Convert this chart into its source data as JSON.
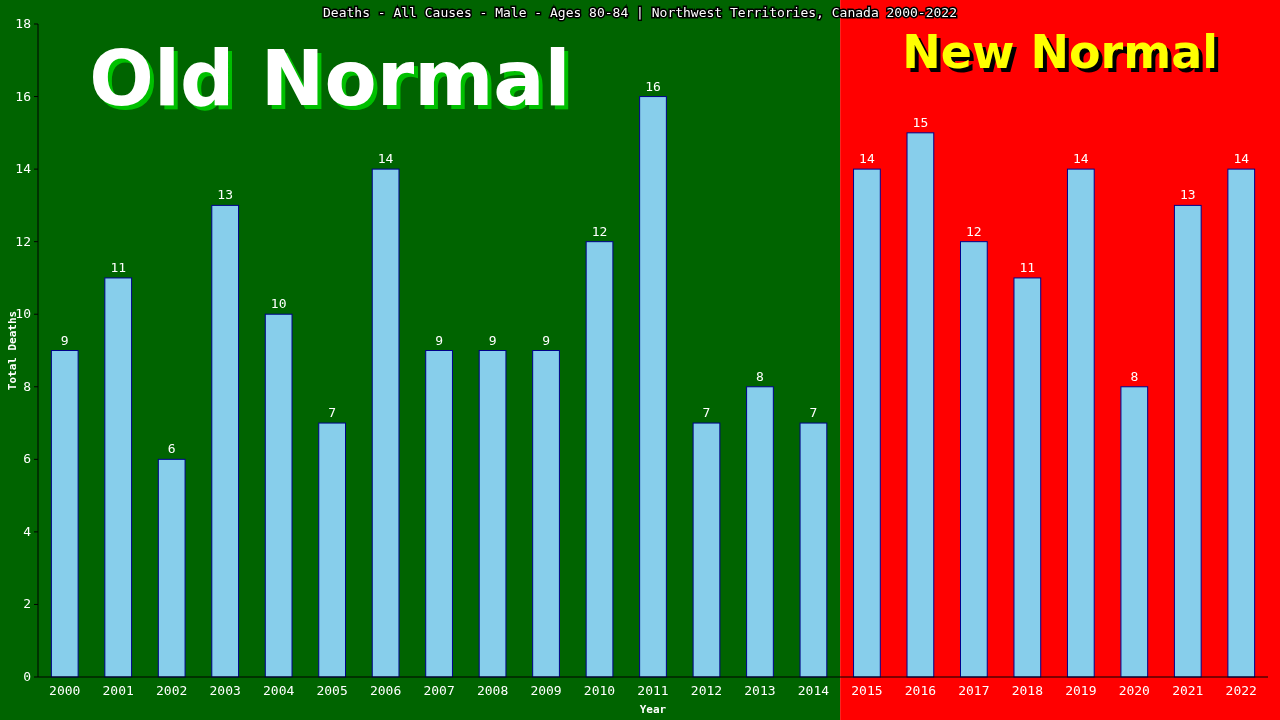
{
  "chart_data": {
    "type": "bar",
    "title": "Deaths - All Causes - Male - Ages 80-84 | Northwest Territories, Canada 2000-2022",
    "xlabel": "Year",
    "ylabel": "Total Deaths",
    "categories": [
      "2000",
      "2001",
      "2002",
      "2003",
      "2004",
      "2005",
      "2006",
      "2007",
      "2008",
      "2009",
      "2010",
      "2011",
      "2012",
      "2013",
      "2014",
      "2015",
      "2016",
      "2017",
      "2018",
      "2019",
      "2020",
      "2021",
      "2022"
    ],
    "values": [
      9,
      11,
      6,
      13,
      10,
      7,
      14,
      9,
      9,
      9,
      12,
      16,
      7,
      8,
      7,
      14,
      15,
      12,
      11,
      14,
      8,
      13,
      14
    ],
    "color": "#87ceeb",
    "ylim": [
      0,
      18
    ],
    "yticks": [
      0,
      2,
      4,
      6,
      8,
      10,
      12,
      14,
      16,
      18
    ],
    "grid": false,
    "data_labels": true,
    "bands": [
      {
        "axis": "x",
        "from": "2000",
        "to": "2014",
        "label": "Old Normal",
        "color": "#006400"
      },
      {
        "axis": "x",
        "from": "2015",
        "to": "2022",
        "label": "New Normal",
        "color": "#ff0000"
      }
    ]
  }
}
